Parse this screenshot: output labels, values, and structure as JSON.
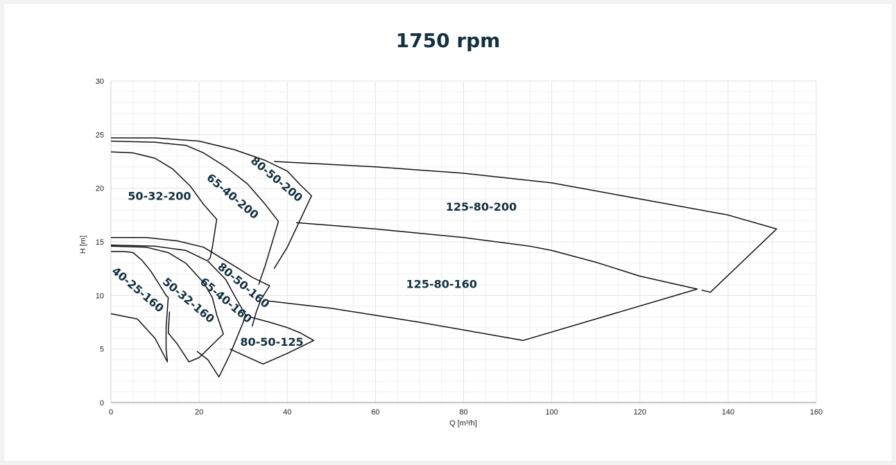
{
  "chart_data": {
    "type": "line",
    "title": "1750 rpm",
    "xlabel": "Q [m³/h]",
    "ylabel": "H [m]",
    "xlim": [
      0,
      160
    ],
    "ylim": [
      0,
      30
    ],
    "xticks": [
      "0",
      "20",
      "40",
      "60",
      "80",
      "100",
      "120",
      "140",
      "160"
    ],
    "yticks": [
      "0",
      "5",
      "10",
      "15",
      "20",
      "25",
      "30"
    ],
    "grid": true,
    "regions": [
      {
        "label": "50-32-200",
        "label_at": [
          11,
          19.2
        ],
        "label_angle": 0,
        "points": [
          [
            0,
            23.4
          ],
          [
            5,
            23.3
          ],
          [
            10,
            22.8
          ],
          [
            14,
            21.8
          ],
          [
            18,
            20.2
          ],
          [
            21,
            18.5
          ],
          [
            24,
            17.1
          ],
          [
            23,
            14.5
          ],
          [
            22.5,
            13.5
          ],
          [
            22,
            13.3
          ]
        ]
      },
      {
        "label": "65-40-200",
        "label_at": [
          27.5,
          19.2
        ],
        "label_angle": 40,
        "points": [
          [
            0,
            24.4
          ],
          [
            10,
            24.3
          ],
          [
            17,
            24
          ],
          [
            21,
            23.3
          ],
          [
            26,
            22
          ],
          [
            31,
            20.4
          ],
          [
            35,
            18.5
          ],
          [
            38,
            16.9
          ],
          [
            35,
            12.8
          ],
          [
            33.5,
            11
          ]
        ]
      },
      {
        "label": "80-50-200",
        "label_at": [
          37.5,
          20.8
        ],
        "label_angle": 40,
        "points": [
          [
            0,
            24.7
          ],
          [
            10,
            24.7
          ],
          [
            20,
            24.4
          ],
          [
            28,
            23.6
          ],
          [
            35,
            22.6
          ],
          [
            40,
            21.6
          ],
          [
            43,
            20.3
          ],
          [
            45.5,
            19.3
          ],
          [
            40,
            14.5
          ],
          [
            37,
            12.5
          ]
        ]
      },
      {
        "label": "125-80-200",
        "label_at": [
          84,
          18.2
        ],
        "label_angle": 0,
        "points": [
          [
            37,
            22.5
          ],
          [
            60,
            22
          ],
          [
            80,
            21.4
          ],
          [
            100,
            20.5
          ],
          [
            120,
            19
          ],
          [
            140,
            17.5
          ],
          [
            151,
            16.2
          ],
          [
            136,
            10.3
          ],
          [
            134,
            10.5
          ]
        ]
      },
      {
        "label": "125-80-160",
        "label_at": [
          75,
          11
        ],
        "label_angle": 0,
        "points": [
          [
            42,
            16.8
          ],
          [
            60,
            16.2
          ],
          [
            80,
            15.4
          ],
          [
            95,
            14.6
          ],
          [
            100,
            14.2
          ],
          [
            110,
            13.1
          ],
          [
            120,
            11.8
          ],
          [
            133,
            10.6
          ],
          [
            93.5,
            5.8
          ],
          [
            70,
            7.5
          ],
          [
            50,
            8.8
          ],
          [
            35.5,
            9.5
          ]
        ]
      },
      {
        "label": "40-25-160",
        "label_at": [
          6,
          10.5
        ],
        "label_angle": 40,
        "points": [
          [
            0,
            14.1
          ],
          [
            3,
            14.1
          ],
          [
            5,
            14
          ],
          [
            7,
            13.3
          ],
          [
            9,
            12.3
          ],
          [
            11,
            11
          ],
          [
            12.5,
            10
          ],
          [
            13,
            9.8
          ],
          [
            12.5,
            7
          ],
          [
            12.5,
            5
          ],
          [
            12.8,
            3.8
          ],
          [
            10,
            6
          ],
          [
            6,
            7.8
          ],
          [
            0,
            8.3
          ]
        ]
      },
      {
        "label": "50-32-160",
        "label_at": [
          17.5,
          9.5
        ],
        "label_angle": 40,
        "points": [
          [
            0,
            14.6
          ],
          [
            8,
            14.5
          ],
          [
            13,
            14
          ],
          [
            17,
            13
          ],
          [
            21,
            11.2
          ],
          [
            23,
            9.8
          ],
          [
            24,
            8.2
          ],
          [
            25.5,
            6.4
          ],
          [
            20,
            4.2
          ],
          [
            17.7,
            3.8
          ],
          [
            15,
            5.5
          ],
          [
            13,
            6.5
          ],
          [
            13.3,
            8.5
          ]
        ]
      },
      {
        "label": "65-40-160",
        "label_at": [
          26,
          9.5
        ],
        "label_angle": 40,
        "points": [
          [
            0,
            14.7
          ],
          [
            10,
            14.6
          ],
          [
            17,
            14.2
          ],
          [
            22,
            13.2
          ],
          [
            26,
            11.5
          ],
          [
            28,
            10
          ],
          [
            30.5,
            8.2
          ],
          [
            30,
            7.5
          ],
          [
            28.5,
            6
          ],
          [
            27,
            4.5
          ],
          [
            24.5,
            2.4
          ],
          [
            22,
            4
          ],
          [
            19.5,
            4.8
          ]
        ]
      },
      {
        "label": "80-50-160",
        "label_at": [
          30,
          10.9
        ],
        "label_angle": 40,
        "points": [
          [
            0,
            15.4
          ],
          [
            8,
            15.4
          ],
          [
            15,
            15.1
          ],
          [
            21,
            14.5
          ],
          [
            25,
            13.5
          ],
          [
            29,
            12.5
          ],
          [
            32,
            11.7
          ],
          [
            36,
            10.9
          ],
          [
            34,
            9.6
          ],
          [
            33,
            8.5
          ],
          [
            32,
            7.1
          ]
        ]
      },
      {
        "label": "80-50-125",
        "label_at": [
          36.5,
          5.6
        ],
        "label_angle": 0,
        "points": [
          [
            31.5,
            8
          ],
          [
            36,
            7.5
          ],
          [
            40,
            7
          ],
          [
            43,
            6.5
          ],
          [
            46,
            5.8
          ],
          [
            40,
            4.6
          ],
          [
            34.5,
            3.6
          ],
          [
            27,
            5
          ]
        ]
      }
    ]
  }
}
